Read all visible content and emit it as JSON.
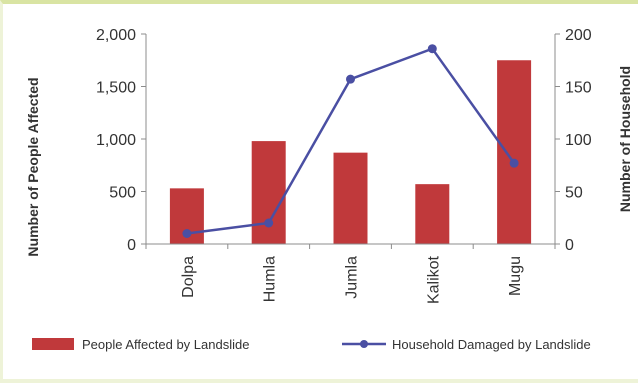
{
  "chart_data": {
    "type": "bar+line",
    "categories": [
      "Dolpa",
      "Humla",
      "Jumla",
      "Kalikot",
      "Mugu"
    ],
    "series": [
      {
        "name": "People Affected by Landslide",
        "kind": "bar",
        "axis": "left",
        "color": "#c0393b",
        "values": [
          530,
          980,
          870,
          570,
          1750
        ]
      },
      {
        "name": "Household Damaged by Landslide",
        "kind": "line",
        "axis": "right",
        "color": "#4a4fa3",
        "values": [
          10,
          20,
          157,
          186,
          77
        ]
      }
    ],
    "ylabel": "Number of People Affected",
    "y2label": "Number of Household",
    "ylim": [
      0,
      2000
    ],
    "y2lim": [
      0,
      200
    ],
    "yticks": [
      "0",
      "500",
      "1,000",
      "1,500",
      "2,000"
    ],
    "y2ticks": [
      "0",
      "50",
      "100",
      "150",
      "200"
    ],
    "grid": false,
    "legend": "bottom"
  }
}
